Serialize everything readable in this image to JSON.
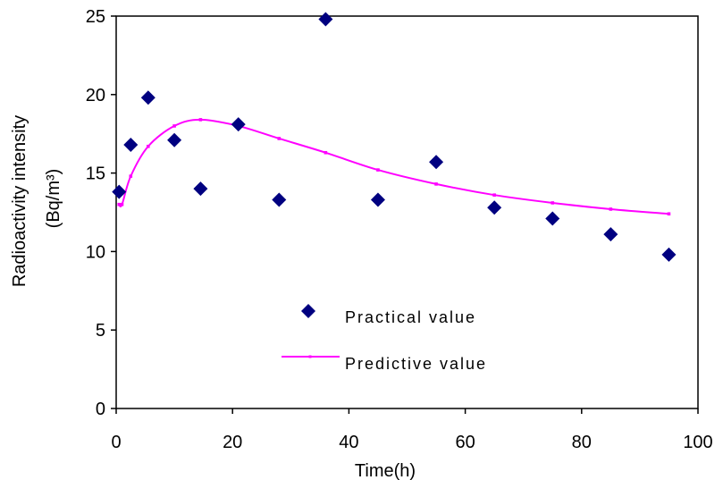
{
  "chart_data": {
    "type": "scatter",
    "title": "",
    "xlabel": "Time(h)",
    "ylabel": "Radioactivity intensity",
    "ylabel_unit": "(Bq/m³)",
    "xlim": [
      0,
      100
    ],
    "ylim": [
      0,
      25
    ],
    "x_ticks": [
      "0",
      "20",
      "40",
      "60",
      "80",
      "100"
    ],
    "y_ticks": [
      "0",
      "5",
      "10",
      "15",
      "20",
      "25"
    ],
    "grid": false,
    "legend_position": "center-bottom",
    "series": [
      {
        "name": "Practical value",
        "kind": "scatter",
        "marker": "diamond",
        "color": "#000080",
        "x": [
          0.5,
          2.5,
          5.5,
          10,
          14.5,
          21,
          28,
          36,
          45,
          55,
          65,
          75,
          85,
          95
        ],
        "y": [
          13.8,
          16.8,
          19.8,
          17.1,
          14,
          18.1,
          13.3,
          24.8,
          13.3,
          15.7,
          12.8,
          12.1,
          11.1,
          9.8
        ]
      },
      {
        "name": "Predictive value",
        "kind": "line",
        "marker": "small-square",
        "color": "#ff00ff",
        "x": [
          0.5,
          1,
          2.5,
          5.5,
          10,
          14.5,
          21,
          28,
          36,
          45,
          55,
          65,
          75,
          85,
          95
        ],
        "y": [
          13,
          13,
          14.8,
          16.7,
          18,
          18.4,
          18,
          17.2,
          16.3,
          15.2,
          14.3,
          13.6,
          13.1,
          12.7,
          12.4
        ]
      }
    ]
  }
}
